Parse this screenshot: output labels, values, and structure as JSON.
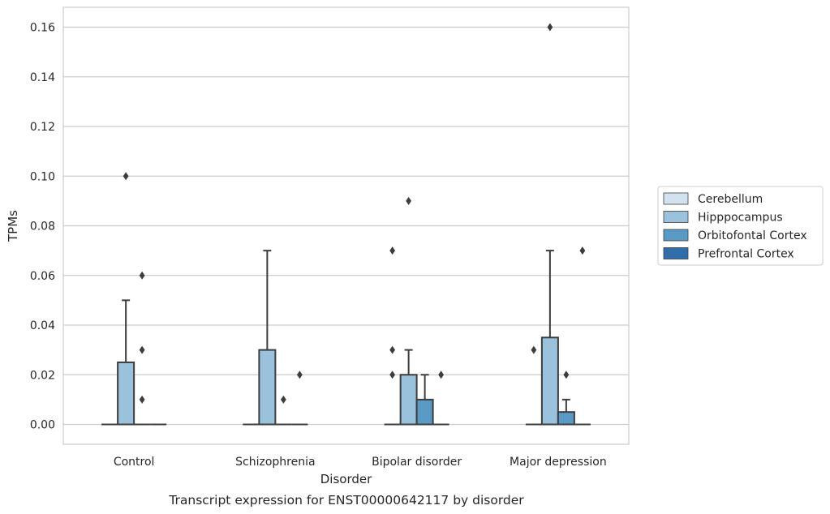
{
  "caption": "Transcript expression for ENST00000642117 by disorder",
  "chart_data": {
    "type": "boxplot",
    "xlabel": "Disorder",
    "ylabel": "TPMs",
    "ylim": [
      -0.008,
      0.168
    ],
    "yticks": [
      0.0,
      0.02,
      0.04,
      0.06,
      0.08,
      0.1,
      0.12,
      0.14,
      0.16
    ],
    "ytick_labels": [
      "0.00",
      "0.02",
      "0.04",
      "0.06",
      "0.08",
      "0.10",
      "0.12",
      "0.14",
      "0.16"
    ],
    "grid": "horizontal",
    "legend_position": "right",
    "categories": [
      "Control",
      "Schizophrenia",
      "Bipolar disorder",
      "Major depression"
    ],
    "series": [
      {
        "name": "Cerebellum",
        "color": "#d3e2f0",
        "boxes": [
          {
            "q1": 0,
            "median": 0,
            "q3": 0,
            "whisker_low": 0,
            "whisker_high": 0,
            "outliers": []
          },
          {
            "q1": 0,
            "median": 0,
            "q3": 0,
            "whisker_low": 0,
            "whisker_high": 0,
            "outliers": []
          },
          {
            "q1": 0,
            "median": 0,
            "q3": 0,
            "whisker_low": 0,
            "whisker_high": 0,
            "outliers": [
              0.07,
              0.03,
              0.02
            ]
          },
          {
            "q1": 0,
            "median": 0,
            "q3": 0,
            "whisker_low": 0,
            "whisker_high": 0,
            "outliers": [
              0.03
            ]
          }
        ]
      },
      {
        "name": "Hipppocampus",
        "color": "#9ac2dc",
        "boxes": [
          {
            "q1": 0,
            "median": 0,
            "q3": 0.025,
            "whisker_low": 0,
            "whisker_high": 0.05,
            "outliers": [
              0.1
            ]
          },
          {
            "q1": 0,
            "median": 0,
            "q3": 0.03,
            "whisker_low": 0,
            "whisker_high": 0.07,
            "outliers": []
          },
          {
            "q1": 0,
            "median": 0,
            "q3": 0.02,
            "whisker_low": 0,
            "whisker_high": 0.03,
            "outliers": [
              0.09
            ]
          },
          {
            "q1": 0,
            "median": 0,
            "q3": 0.035,
            "whisker_low": 0,
            "whisker_high": 0.07,
            "outliers": [
              0.16
            ]
          }
        ]
      },
      {
        "name": "Orbitofontal Cortex",
        "color": "#5a9bc6",
        "boxes": [
          {
            "q1": 0,
            "median": 0,
            "q3": 0,
            "whisker_low": 0,
            "whisker_high": 0,
            "outliers": [
              0.06,
              0.03,
              0.01
            ]
          },
          {
            "q1": 0,
            "median": 0,
            "q3": 0,
            "whisker_low": 0,
            "whisker_high": 0,
            "outliers": [
              0.01
            ]
          },
          {
            "q1": 0,
            "median": 0,
            "q3": 0.01,
            "whisker_low": 0,
            "whisker_high": 0.02,
            "outliers": []
          },
          {
            "q1": 0,
            "median": 0,
            "q3": 0.005,
            "whisker_low": 0,
            "whisker_high": 0.01,
            "outliers": [
              0.02
            ]
          }
        ]
      },
      {
        "name": "Prefrontal Cortex",
        "color": "#2f6ea8",
        "boxes": [
          {
            "q1": 0,
            "median": 0,
            "q3": 0,
            "whisker_low": 0,
            "whisker_high": 0,
            "outliers": []
          },
          {
            "q1": 0,
            "median": 0,
            "q3": 0,
            "whisker_low": 0,
            "whisker_high": 0,
            "outliers": [
              0.02
            ]
          },
          {
            "q1": 0,
            "median": 0,
            "q3": 0,
            "whisker_low": 0,
            "whisker_high": 0,
            "outliers": [
              0.02
            ]
          },
          {
            "q1": 0,
            "median": 0,
            "q3": 0,
            "whisker_low": 0,
            "whisker_high": 0,
            "outliers": [
              0.07
            ]
          }
        ]
      }
    ]
  }
}
